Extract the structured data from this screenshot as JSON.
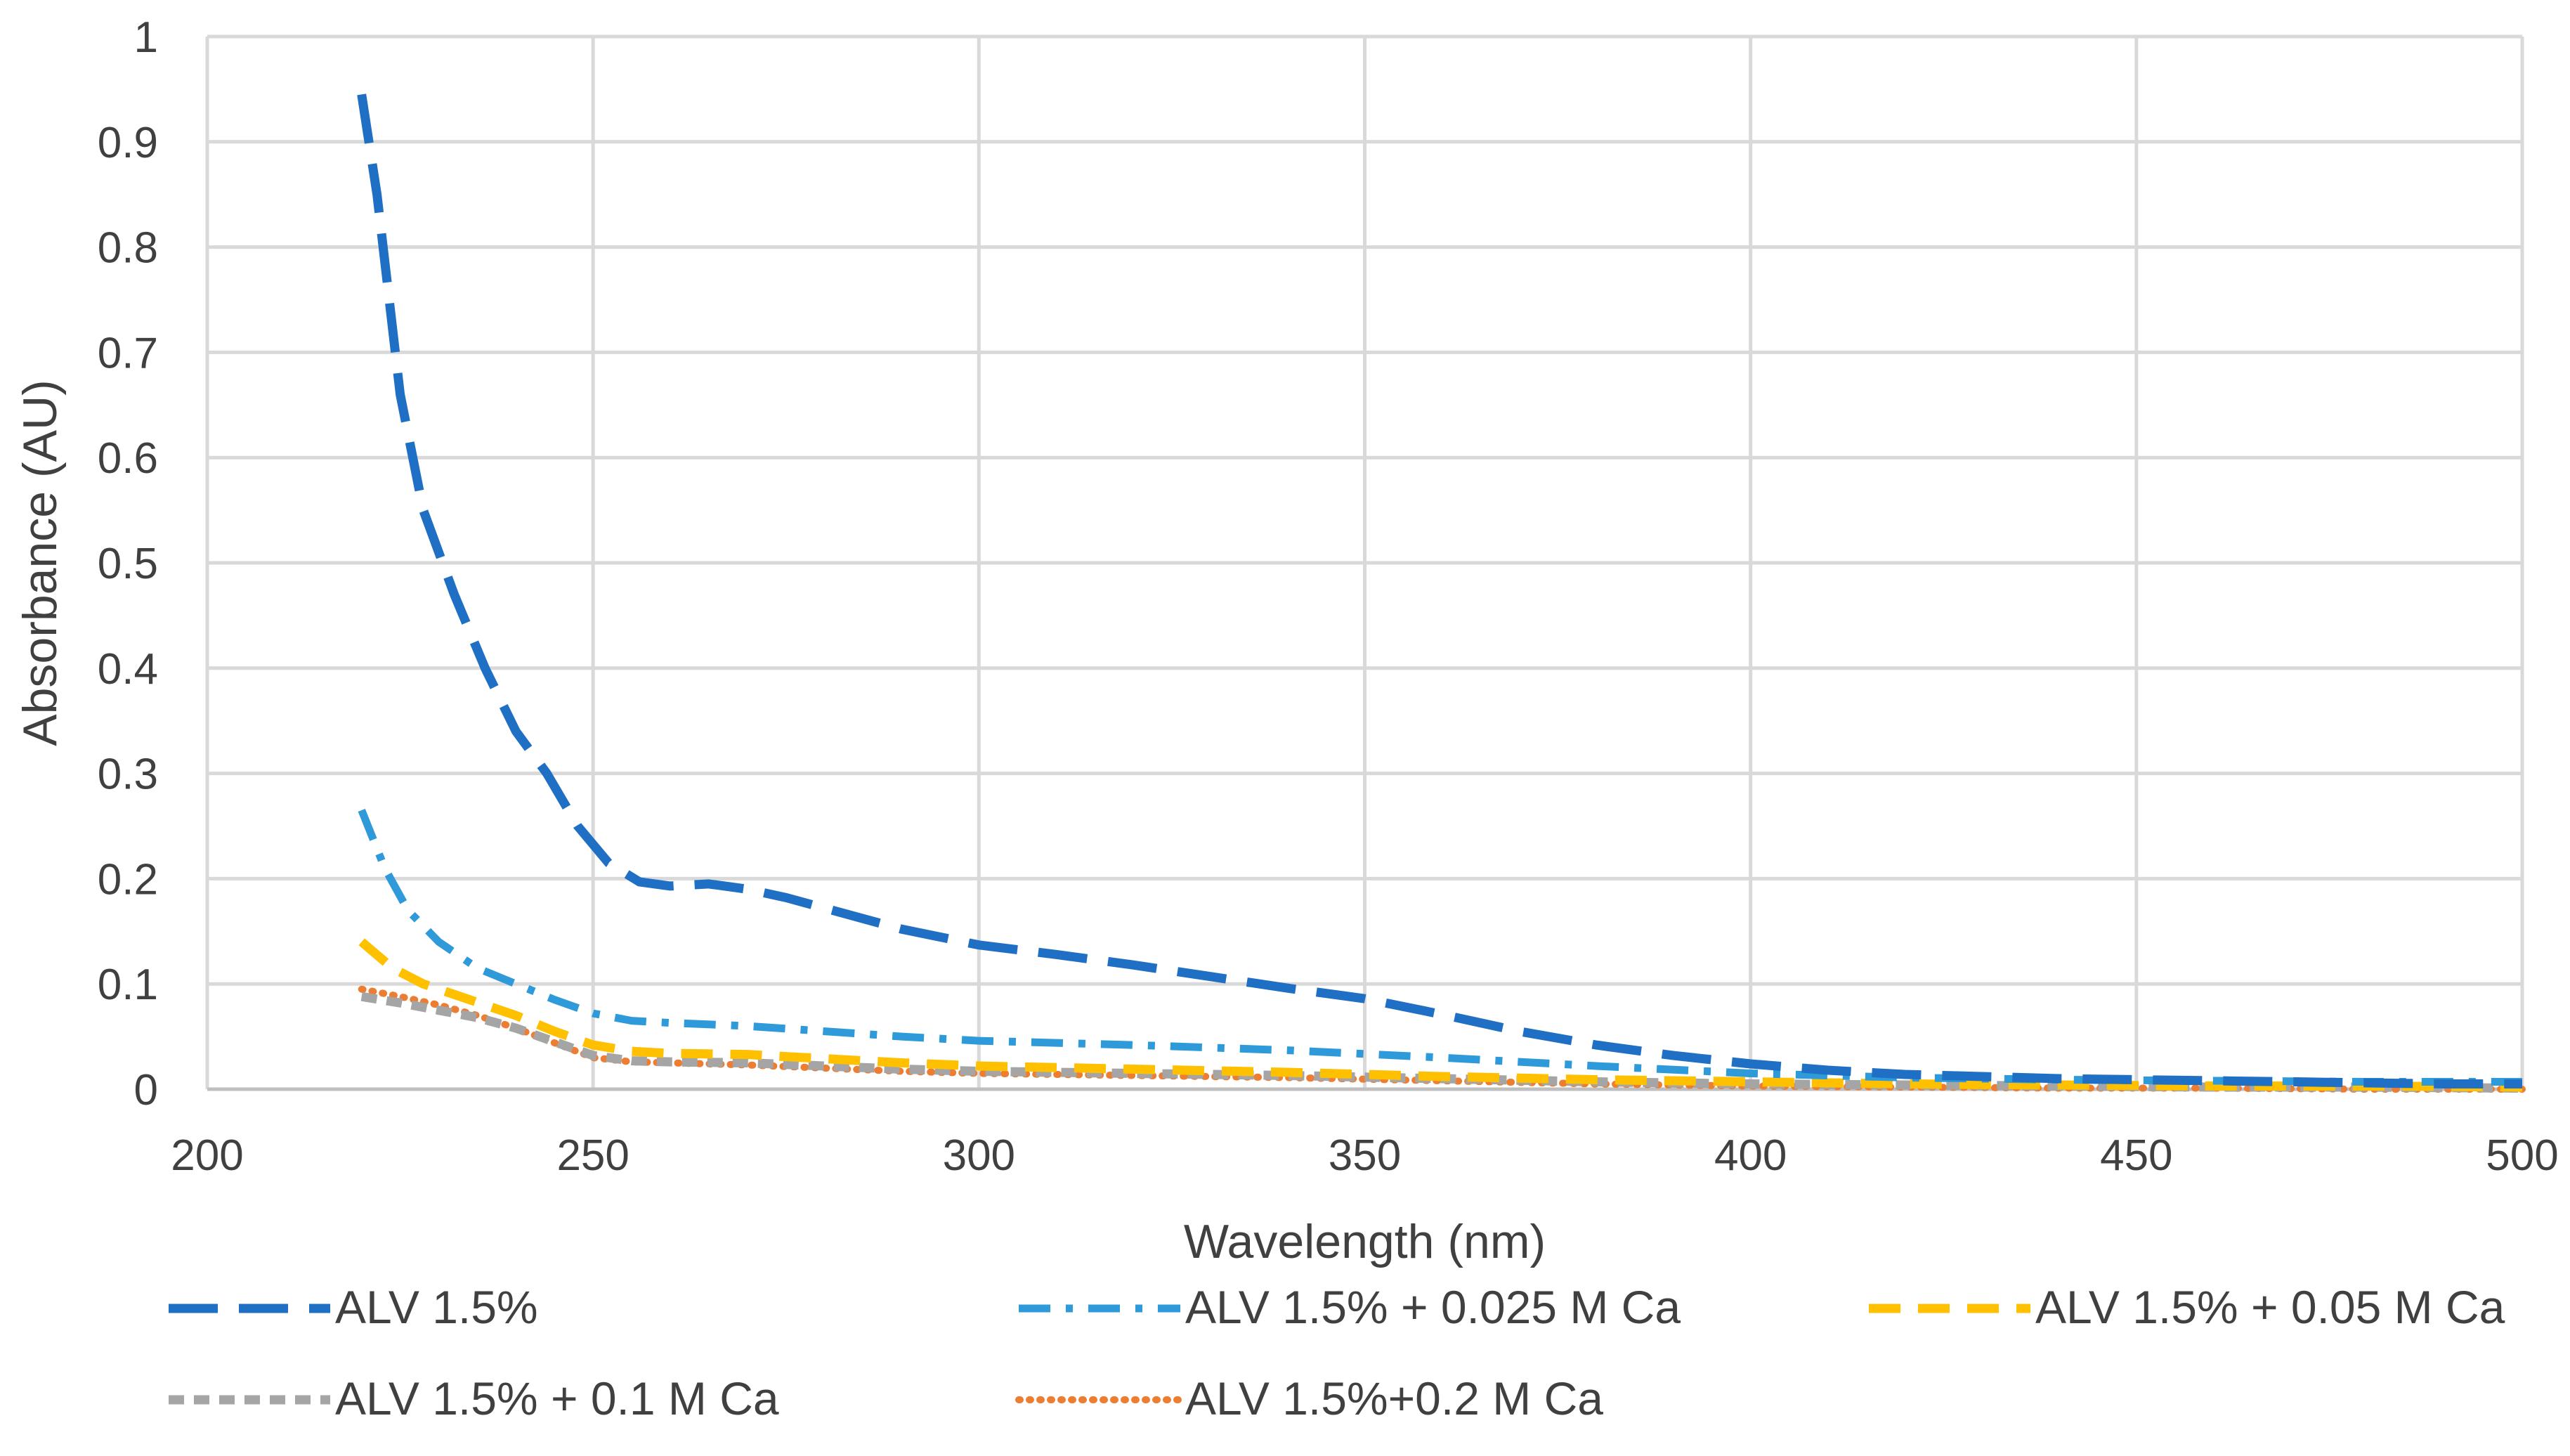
{
  "chart_data": {
    "type": "line",
    "title": "",
    "xlabel": "Wavelength (nm)",
    "ylabel": "Absorbance (AU)",
    "xlim": [
      200,
      500
    ],
    "ylim": [
      0,
      1
    ],
    "x_ticks": [
      "200",
      "250",
      "300",
      "350",
      "400",
      "450",
      "500"
    ],
    "y_ticks": [
      "0",
      "0.1",
      "0.2",
      "0.3",
      "0.4",
      "0.5",
      "0.6",
      "0.7",
      "0.8",
      "0.9",
      "1"
    ],
    "grid": true,
    "legend_position": "bottom",
    "series": [
      {
        "name": "ALV 1.5%",
        "color": "#1f6fc5",
        "dash": "long-dash",
        "x": [
          220,
          222,
          225,
          228,
          232,
          236,
          240,
          244,
          248,
          252,
          256,
          260,
          265,
          270,
          275,
          280,
          290,
          300,
          310,
          320,
          330,
          340,
          350,
          360,
          370,
          380,
          390,
          400,
          410,
          420,
          430,
          440,
          450,
          460,
          470,
          480,
          490,
          500
        ],
        "y": [
          0.945,
          0.85,
          0.66,
          0.55,
          0.47,
          0.4,
          0.34,
          0.3,
          0.25,
          0.215,
          0.197,
          0.193,
          0.195,
          0.19,
          0.182,
          0.172,
          0.152,
          0.137,
          0.128,
          0.118,
          0.107,
          0.096,
          0.086,
          0.071,
          0.055,
          0.042,
          0.032,
          0.024,
          0.018,
          0.014,
          0.012,
          0.01,
          0.009,
          0.008,
          0.007,
          0.006,
          0.005,
          0.005
        ]
      },
      {
        "name": "ALV 1.5% + 0.025 M Ca",
        "color": "#2e9ad9",
        "dash": "dash-dot",
        "x": [
          220,
          223,
          226,
          230,
          235,
          240,
          245,
          250,
          255,
          260,
          270,
          280,
          290,
          300,
          320,
          340,
          360,
          380,
          400,
          420,
          440,
          460,
          480,
          500
        ],
        "y": [
          0.265,
          0.21,
          0.17,
          0.14,
          0.115,
          0.1,
          0.085,
          0.072,
          0.065,
          0.063,
          0.06,
          0.055,
          0.05,
          0.046,
          0.042,
          0.037,
          0.03,
          0.022,
          0.015,
          0.011,
          0.009,
          0.008,
          0.007,
          0.007
        ]
      },
      {
        "name": "ALV 1.5% + 0.05 M Ca",
        "color": "#ffc000",
        "dash": "dash",
        "x": [
          220,
          224,
          228,
          232,
          236,
          240,
          245,
          250,
          255,
          260,
          270,
          280,
          290,
          300,
          320,
          340,
          360,
          380,
          400,
          420,
          440,
          460,
          480,
          500
        ],
        "y": [
          0.14,
          0.115,
          0.1,
          0.09,
          0.08,
          0.07,
          0.055,
          0.042,
          0.036,
          0.034,
          0.033,
          0.029,
          0.025,
          0.022,
          0.019,
          0.016,
          0.012,
          0.009,
          0.007,
          0.005,
          0.004,
          0.003,
          0.003,
          0.002
        ]
      },
      {
        "name": "ALV 1.5% + 0.1 M Ca",
        "color": "#a5a5a5",
        "dash": "short-dash",
        "x": [
          220,
          225,
          230,
          235,
          240,
          245,
          250,
          255,
          260,
          270,
          280,
          290,
          300,
          320,
          340,
          360,
          380,
          400,
          420,
          440,
          460,
          480,
          500
        ],
        "y": [
          0.088,
          0.082,
          0.075,
          0.068,
          0.058,
          0.045,
          0.032,
          0.027,
          0.026,
          0.025,
          0.022,
          0.019,
          0.017,
          0.015,
          0.013,
          0.01,
          0.007,
          0.005,
          0.004,
          0.003,
          0.002,
          0.002,
          0.001
        ]
      },
      {
        "name": "ALV 1.5%+0.2 M Ca",
        "color": "#ed7d31",
        "dash": "dotted",
        "x": [
          220,
          225,
          230,
          235,
          240,
          245,
          250,
          255,
          260,
          270,
          280,
          290,
          300,
          320,
          340,
          360,
          380,
          400,
          420,
          440,
          460,
          480,
          500
        ],
        "y": [
          0.095,
          0.088,
          0.08,
          0.07,
          0.058,
          0.044,
          0.03,
          0.026,
          0.025,
          0.023,
          0.02,
          0.017,
          0.015,
          0.013,
          0.011,
          0.008,
          0.005,
          0.003,
          0.002,
          0.001,
          0.001,
          0.0,
          0.0
        ]
      }
    ]
  }
}
